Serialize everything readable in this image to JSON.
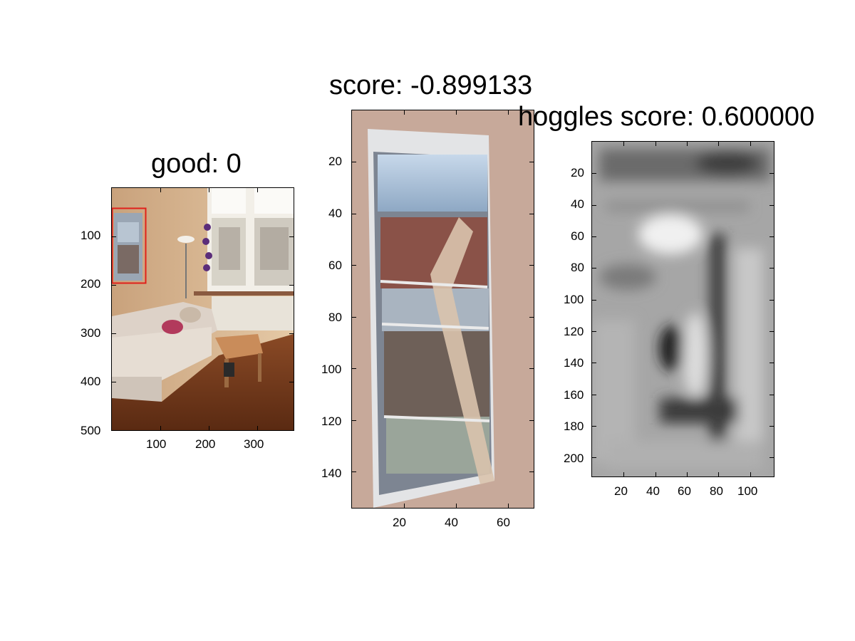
{
  "chart_data": [
    {
      "type": "image",
      "title": "good: 0",
      "content": "living room photo with detection box",
      "xlim": [
        0,
        375
      ],
      "ylim": [
        500,
        0
      ],
      "xticks": [
        100,
        200,
        300
      ],
      "yticks": [
        100,
        200,
        300,
        400,
        500
      ],
      "detection_box": {
        "x0": 0,
        "y0": 42,
        "x1": 70,
        "y1": 197,
        "color": "#e0201a"
      }
    },
    {
      "type": "image",
      "title": "score: -0.899133",
      "content": "cropped detection patch (framed window picture)",
      "xlim": [
        0,
        70
      ],
      "ylim": [
        154,
        0
      ],
      "xticks": [
        20,
        40,
        60
      ],
      "yticks": [
        20,
        40,
        60,
        80,
        100,
        120,
        140
      ]
    },
    {
      "type": "heatmap",
      "title": "hoggles score: 0.600000",
      "colormap": "gray",
      "content": "HOG inverse (hoggles) visualization",
      "xlim": [
        0,
        115
      ],
      "ylim": [
        212,
        0
      ],
      "xticks": [
        20,
        40,
        60,
        80,
        100
      ],
      "yticks": [
        20,
        40,
        60,
        80,
        100,
        120,
        140,
        160,
        180,
        200
      ]
    }
  ]
}
